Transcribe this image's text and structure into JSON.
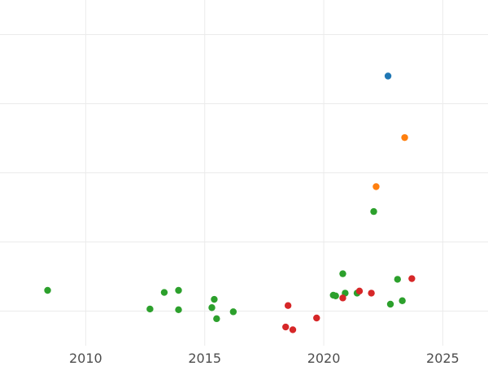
{
  "chart_data": {
    "type": "scatter",
    "title": "",
    "xlabel": "",
    "ylabel": "",
    "xlim": [
      2006.4,
      2026.9
    ],
    "ylim": [
      0,
      5
    ],
    "grid": true,
    "x_ticks": [
      2010,
      2015,
      2020,
      2025
    ],
    "y_gridlines": [
      0.5,
      1.5,
      2.5,
      3.5,
      4.5
    ],
    "series": [
      {
        "color": "#2ca02c",
        "points": [
          {
            "x": 2008.4,
            "y": 0.8
          },
          {
            "x": 2012.7,
            "y": 0.53
          },
          {
            "x": 2013.3,
            "y": 0.77
          },
          {
            "x": 2013.9,
            "y": 0.52
          },
          {
            "x": 2013.9,
            "y": 0.8
          },
          {
            "x": 2015.3,
            "y": 0.55
          },
          {
            "x": 2015.4,
            "y": 0.67
          },
          {
            "x": 2015.5,
            "y": 0.39
          },
          {
            "x": 2016.2,
            "y": 0.49
          },
          {
            "x": 2020.4,
            "y": 0.73
          },
          {
            "x": 2020.5,
            "y": 0.72
          },
          {
            "x": 2020.8,
            "y": 1.04
          },
          {
            "x": 2020.9,
            "y": 0.76
          },
          {
            "x": 2021.4,
            "y": 0.76
          },
          {
            "x": 2022.1,
            "y": 1.94
          },
          {
            "x": 2022.8,
            "y": 0.6
          },
          {
            "x": 2023.1,
            "y": 0.96
          },
          {
            "x": 2023.3,
            "y": 0.65
          }
        ]
      },
      {
        "color": "#d62728",
        "points": [
          {
            "x": 2018.4,
            "y": 0.27
          },
          {
            "x": 2018.5,
            "y": 0.58
          },
          {
            "x": 2018.7,
            "y": 0.23
          },
          {
            "x": 2019.7,
            "y": 0.4
          },
          {
            "x": 2020.8,
            "y": 0.69
          },
          {
            "x": 2021.5,
            "y": 0.79
          },
          {
            "x": 2022.0,
            "y": 0.76
          },
          {
            "x": 2023.7,
            "y": 0.97
          }
        ]
      },
      {
        "color": "#ff7f0e",
        "points": [
          {
            "x": 2022.2,
            "y": 2.3
          },
          {
            "x": 2023.4,
            "y": 3.01
          }
        ]
      },
      {
        "color": "#1f77b4",
        "points": [
          {
            "x": 2022.7,
            "y": 3.9
          }
        ]
      }
    ]
  }
}
